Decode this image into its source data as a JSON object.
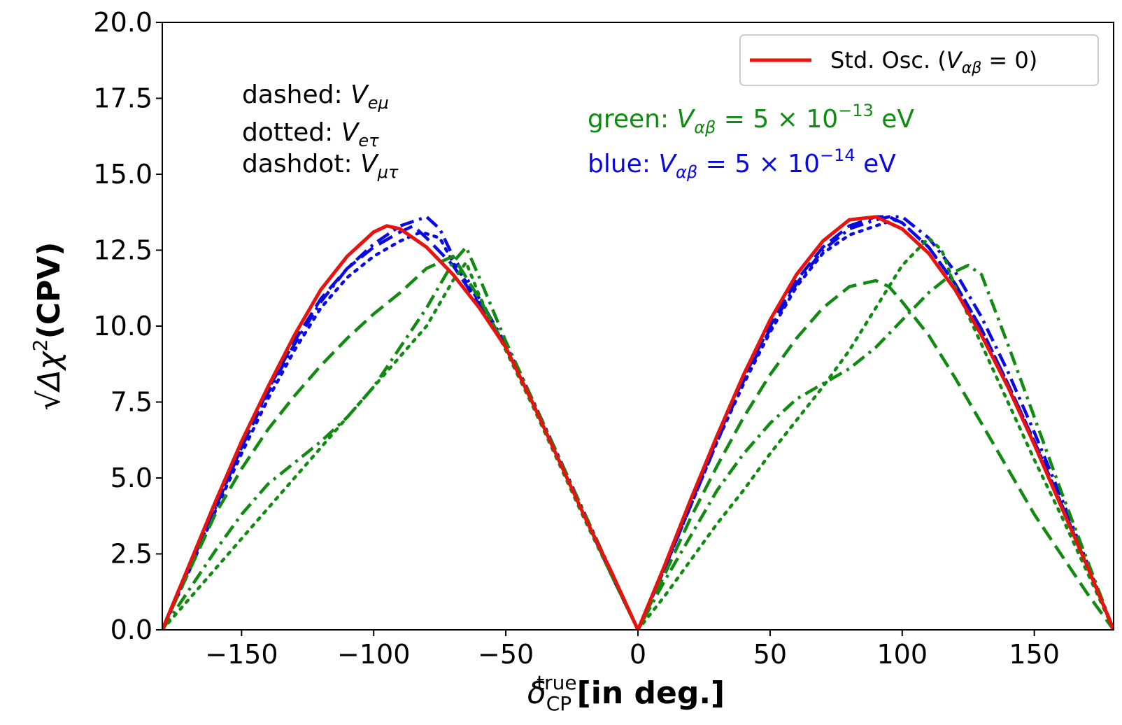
{
  "chart_data": {
    "type": "line",
    "xlabel": {
      "main": "δ",
      "sub": "CP",
      "sup": "true",
      "rest": "[in deg.]"
    },
    "ylabel": {
      "radical": "√",
      "main": "Δχ",
      "sup": "2",
      "rest": "(CPV)"
    },
    "xlim": [
      -180,
      180
    ],
    "ylim": [
      0,
      20
    ],
    "xticks": [
      -150,
      -100,
      -50,
      0,
      50,
      100,
      150
    ],
    "xtick_labels": [
      "−150",
      "−100",
      "−50",
      "0",
      "50",
      "100",
      "150"
    ],
    "yticks": [
      0,
      2.5,
      5,
      7.5,
      10,
      12.5,
      15,
      17.5,
      20
    ],
    "ytick_labels": [
      "0.0",
      "2.5",
      "5.0",
      "7.5",
      "10.0",
      "12.5",
      "15.0",
      "17.5",
      "20.0"
    ],
    "grid": false,
    "legend": {
      "position": "top-right",
      "entries": [
        {
          "color": "#e8120f",
          "label": {
            "pre": "Std. Osc. (",
            "v": "V",
            "sub": "αβ",
            "post": " = 0)"
          }
        }
      ]
    },
    "annotations": {
      "styles": [
        {
          "label": "dashed: ",
          "v": "V",
          "sub": "eμ"
        },
        {
          "label": "dotted: ",
          "v": "V",
          "sub": "eτ"
        },
        {
          "label": "dashdot: ",
          "v": "V",
          "sub": "μτ"
        }
      ],
      "strengths": [
        {
          "color": "#118a11",
          "label": "green: ",
          "v": "V",
          "sub": "αβ",
          "eq": " = 5 × 10",
          "exp": "−13",
          "unit": " eV"
        },
        {
          "color": "#0a0ae0",
          "label": "blue: ",
          "v": "V",
          "sub": "αβ",
          "eq": " = 5 × 10",
          "exp": "−14",
          "unit": " eV"
        }
      ]
    },
    "series": [
      {
        "name": "Std. Osc.",
        "color": "#e8120f",
        "style": "solid",
        "x": [
          -180,
          -170,
          -160,
          -150,
          -140,
          -130,
          -120,
          -110,
          -100,
          -95,
          -90,
          -80,
          -70,
          -60,
          -50,
          -40,
          -30,
          -20,
          -10,
          0,
          10,
          20,
          30,
          40,
          50,
          60,
          70,
          80,
          90,
          95,
          100,
          110,
          120,
          130,
          140,
          150,
          160,
          170,
          180
        ],
        "y": [
          0,
          2.1,
          4.2,
          6.2,
          8.0,
          9.7,
          11.2,
          12.3,
          13.1,
          13.3,
          13.2,
          12.6,
          11.7,
          10.6,
          9.3,
          7.5,
          5.6,
          3.7,
          1.9,
          0,
          2.1,
          4.3,
          6.4,
          8.4,
          10.2,
          11.7,
          12.8,
          13.5,
          13.6,
          13.4,
          13.2,
          12.4,
          11.2,
          9.7,
          8.0,
          6.1,
          4.1,
          2.1,
          0
        ]
      },
      {
        "color": "#0a0ae0",
        "style": "dashed",
        "x": [
          -180,
          -170,
          -160,
          -150,
          -140,
          -130,
          -120,
          -110,
          -100,
          -90,
          -85,
          -80,
          -70,
          -60,
          -50,
          -40,
          -30,
          -20,
          -10,
          0,
          10,
          20,
          30,
          40,
          50,
          60,
          70,
          80,
          90,
          95,
          100,
          110,
          120,
          130,
          140,
          150,
          160,
          170,
          180
        ],
        "y": [
          0,
          2.0,
          4.1,
          6.0,
          7.9,
          9.5,
          10.9,
          11.9,
          12.6,
          13.1,
          13.3,
          12.9,
          12.0,
          10.7,
          9.3,
          7.5,
          5.6,
          3.7,
          1.8,
          0,
          2.1,
          4.2,
          6.3,
          8.3,
          10.0,
          11.5,
          12.6,
          13.3,
          13.6,
          13.6,
          13.4,
          12.6,
          11.4,
          9.9,
          8.1,
          6.2,
          4.2,
          2.1,
          0
        ]
      },
      {
        "color": "#0a0ae0",
        "style": "dotted",
        "x": [
          -180,
          -170,
          -160,
          -150,
          -140,
          -130,
          -120,
          -110,
          -100,
          -90,
          -82,
          -75,
          -70,
          -60,
          -50,
          -40,
          -30,
          -20,
          -10,
          0,
          10,
          20,
          30,
          40,
          50,
          60,
          70,
          80,
          90,
          97,
          100,
          110,
          120,
          130,
          140,
          150,
          160,
          170,
          180
        ],
        "y": [
          0,
          1.9,
          3.9,
          5.8,
          7.6,
          9.2,
          10.6,
          11.6,
          12.3,
          12.8,
          13.1,
          12.9,
          12.1,
          10.8,
          9.3,
          7.5,
          5.6,
          3.7,
          1.8,
          0,
          2.0,
          4.1,
          6.2,
          8.1,
          9.8,
          11.3,
          12.4,
          13.0,
          13.3,
          13.5,
          13.4,
          12.6,
          11.4,
          9.9,
          8.1,
          6.2,
          4.2,
          2.1,
          0
        ]
      },
      {
        "color": "#0a0ae0",
        "style": "dashdot",
        "x": [
          -180,
          -170,
          -160,
          -150,
          -140,
          -130,
          -120,
          -110,
          -100,
          -90,
          -80,
          -75,
          -70,
          -60,
          -50,
          -40,
          -30,
          -20,
          -10,
          0,
          10,
          20,
          30,
          40,
          50,
          60,
          70,
          80,
          90,
          95,
          100,
          110,
          120,
          130,
          140,
          150,
          160,
          170,
          180
        ],
        "y": [
          0,
          2.0,
          4.0,
          6.0,
          7.8,
          9.4,
          10.8,
          11.9,
          12.7,
          13.3,
          13.6,
          13.2,
          12.3,
          10.9,
          9.4,
          7.6,
          5.7,
          3.8,
          1.9,
          0,
          2.0,
          4.1,
          6.2,
          8.2,
          9.9,
          11.4,
          12.5,
          13.2,
          13.5,
          13.6,
          13.6,
          12.9,
          11.8,
          10.3,
          8.5,
          6.5,
          4.4,
          2.2,
          0
        ]
      },
      {
        "color": "#118a11",
        "style": "dashed",
        "x": [
          -180,
          -170,
          -160,
          -150,
          -140,
          -130,
          -120,
          -110,
          -100,
          -90,
          -80,
          -70,
          -60,
          -50,
          -40,
          -30,
          -20,
          -10,
          0,
          10,
          20,
          30,
          40,
          50,
          60,
          70,
          80,
          90,
          95,
          100,
          110,
          120,
          130,
          140,
          150,
          160,
          170,
          180
        ],
        "y": [
          0,
          1.9,
          3.8,
          5.3,
          6.6,
          7.7,
          8.7,
          9.6,
          10.4,
          11.1,
          11.9,
          12.3,
          10.9,
          9.3,
          7.5,
          5.6,
          3.7,
          1.8,
          0,
          1.8,
          3.7,
          5.4,
          7.0,
          8.4,
          9.6,
          10.6,
          11.3,
          11.5,
          11.3,
          10.8,
          9.7,
          8.3,
          6.8,
          5.3,
          3.8,
          2.5,
          1.2,
          0
        ]
      },
      {
        "color": "#118a11",
        "style": "dotted",
        "x": [
          -180,
          -170,
          -160,
          -150,
          -140,
          -130,
          -120,
          -110,
          -100,
          -90,
          -80,
          -70,
          -65,
          -60,
          -50,
          -40,
          -30,
          -20,
          -10,
          0,
          10,
          20,
          30,
          40,
          50,
          60,
          70,
          80,
          90,
          100,
          110,
          115,
          120,
          130,
          140,
          150,
          160,
          170,
          180
        ],
        "y": [
          0,
          1.0,
          2.0,
          3.0,
          4.0,
          5.0,
          6.0,
          7.0,
          8.0,
          9.0,
          10.0,
          11.5,
          12.1,
          11.0,
          9.2,
          7.4,
          5.5,
          3.6,
          1.8,
          0,
          1.1,
          2.3,
          3.5,
          4.6,
          5.8,
          6.9,
          8.0,
          9.2,
          10.6,
          12.0,
          12.9,
          12.5,
          11.3,
          9.4,
          7.5,
          5.6,
          3.8,
          1.9,
          0
        ]
      },
      {
        "color": "#118a11",
        "style": "dashdot",
        "x": [
          -180,
          -170,
          -160,
          -150,
          -140,
          -130,
          -120,
          -110,
          -100,
          -90,
          -80,
          -70,
          -65,
          -60,
          -50,
          -40,
          -30,
          -20,
          -10,
          0,
          10,
          20,
          30,
          40,
          50,
          60,
          70,
          80,
          90,
          100,
          110,
          120,
          125,
          130,
          140,
          150,
          160,
          170,
          180
        ],
        "y": [
          0,
          1.3,
          2.6,
          3.8,
          4.8,
          5.5,
          6.2,
          7.0,
          8.0,
          9.3,
          10.6,
          12.1,
          12.6,
          11.6,
          9.5,
          7.6,
          5.7,
          3.8,
          1.9,
          0,
          1.6,
          3.1,
          4.6,
          5.8,
          6.8,
          7.6,
          8.1,
          8.6,
          9.3,
          10.2,
          11.1,
          11.8,
          12.0,
          11.7,
          9.4,
          7.0,
          4.6,
          2.3,
          0
        ]
      }
    ]
  }
}
